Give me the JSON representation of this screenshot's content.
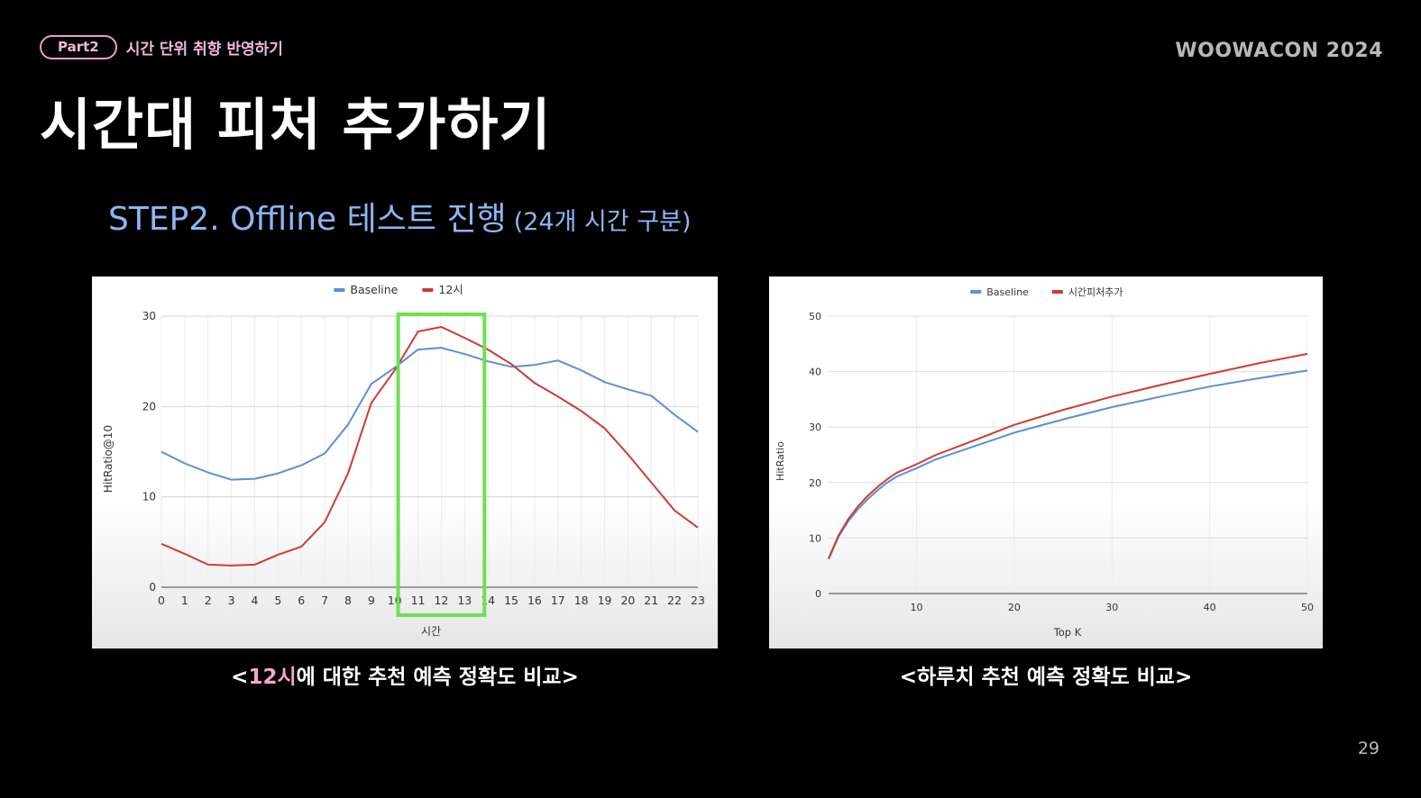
{
  "header": {
    "part_label": "Part2",
    "part_title": "시간 단위 취향 반영하기",
    "brand": "WOOWACON 2024"
  },
  "title": "시간대 피처 추가하기",
  "step": {
    "main": "STEP2. Offline 테스트 진행",
    "sub": "(24개 시간 구분)"
  },
  "captions": {
    "left": {
      "open": "<",
      "highlight": "12시",
      "rest": "에 대한 추천 예측 정확도 비교>"
    },
    "right": "<하루치 추천 예측 정확도 비교>"
  },
  "page_number": "29",
  "colors": {
    "baseline": "#5b8fdb",
    "feature": "#cf3b33",
    "highlight_box": "#6de052",
    "accent_pink": "#f0a8d0",
    "step_blue": "#8cb6f4"
  },
  "chart_data": [
    {
      "type": "line",
      "xlabel": "시간",
      "ylabel": "HitRatio@10",
      "x": [
        0,
        1,
        2,
        3,
        4,
        5,
        6,
        7,
        8,
        9,
        10,
        11,
        12,
        13,
        14,
        15,
        16,
        17,
        18,
        19,
        20,
        21,
        22,
        23
      ],
      "ylim": [
        0,
        30
      ],
      "yticks": [
        0,
        10,
        20,
        30
      ],
      "grid": true,
      "legend": "top-center",
      "series": [
        {
          "name": "Baseline",
          "color": "#5b8fdb",
          "values": [
            15.0,
            13.7,
            12.7,
            11.9,
            12.0,
            12.6,
            13.5,
            14.8,
            18.0,
            22.5,
            24.3,
            26.3,
            26.5,
            25.8,
            25.0,
            24.4,
            24.6,
            25.1,
            24.0,
            22.7,
            21.9,
            21.2,
            19.1,
            17.2
          ]
        },
        {
          "name": "12시",
          "color": "#cf3b33",
          "values": [
            4.8,
            3.7,
            2.5,
            2.4,
            2.5,
            3.6,
            4.5,
            7.2,
            12.6,
            20.4,
            24.0,
            28.3,
            28.8,
            27.6,
            26.3,
            24.7,
            22.6,
            21.1,
            19.5,
            17.6,
            14.7,
            11.6,
            8.5,
            6.6
          ]
        }
      ],
      "highlight_range": [
        11,
        13
      ]
    },
    {
      "type": "line",
      "xlabel": "Top K",
      "ylabel": "HitRatio",
      "x": [
        1,
        2,
        3,
        4,
        5,
        6,
        7,
        8,
        10,
        12,
        15,
        20,
        25,
        30,
        35,
        40,
        45,
        50
      ],
      "xlim": [
        1,
        50
      ],
      "xticks": [
        10,
        20,
        30,
        40,
        50
      ],
      "ylim": [
        0,
        50
      ],
      "yticks": [
        0,
        10,
        20,
        30,
        40,
        50
      ],
      "grid": true,
      "legend": "top-center",
      "series": [
        {
          "name": "Baseline",
          "color": "#5b8fdb",
          "values": [
            6.2,
            10.2,
            13.0,
            15.2,
            17.0,
            18.6,
            20.0,
            21.1,
            22.6,
            24.2,
            26.0,
            29.0,
            31.4,
            33.6,
            35.5,
            37.3,
            38.8,
            40.2
          ]
        },
        {
          "name": "시간피처추가",
          "color": "#cf3b33",
          "values": [
            6.3,
            10.4,
            13.4,
            15.7,
            17.6,
            19.2,
            20.6,
            21.8,
            23.3,
            25.0,
            27.0,
            30.4,
            33.1,
            35.5,
            37.6,
            39.6,
            41.5,
            43.2
          ]
        }
      ]
    }
  ]
}
